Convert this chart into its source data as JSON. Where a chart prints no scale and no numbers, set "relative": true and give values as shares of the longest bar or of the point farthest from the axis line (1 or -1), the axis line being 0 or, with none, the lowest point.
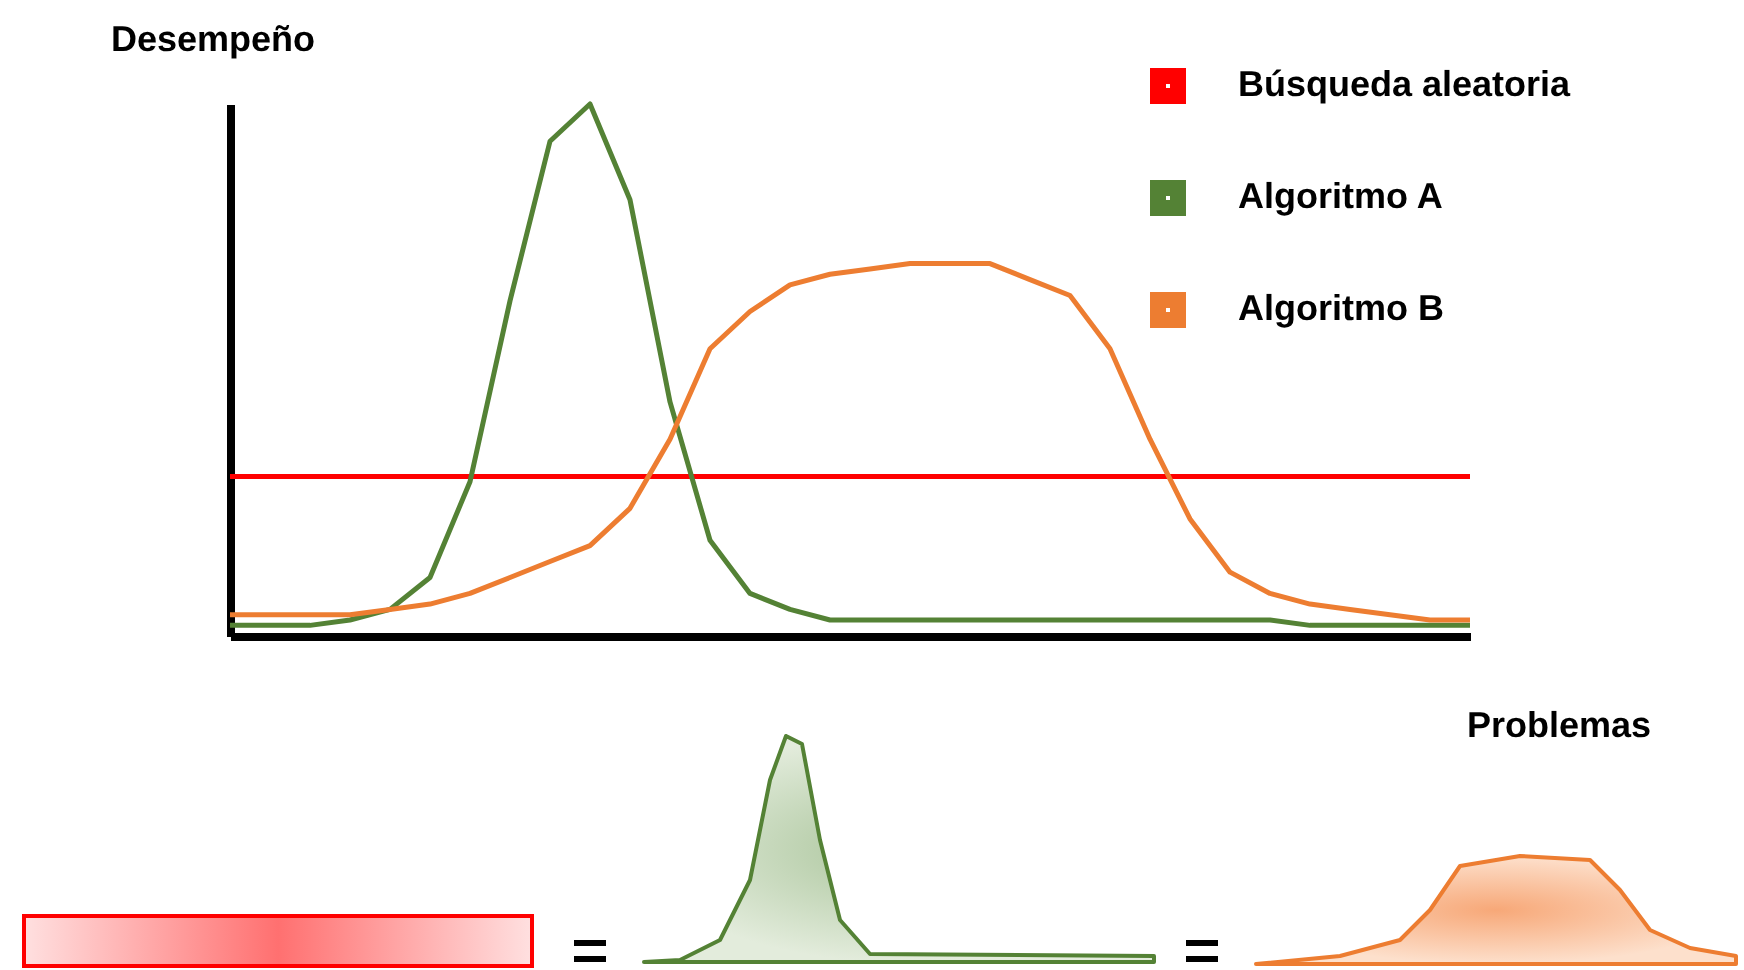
{
  "chart_data": {
    "type": "line",
    "ylabel": "Desempeño",
    "xlabel": "Problemas",
    "relative": true,
    "legend": "top right",
    "marker": "none",
    "line_style": "solid",
    "grid": false,
    "categories": [
      null,
      null,
      null,
      null,
      null,
      null,
      null,
      null,
      null,
      null,
      null,
      null,
      null,
      null,
      null,
      null,
      null,
      null,
      null,
      null,
      null,
      null,
      null,
      null,
      null,
      null,
      null,
      null,
      null,
      null,
      null,
      null
    ],
    "series": [
      {
        "name": "Búsqueda aleatoria",
        "color": "#ff0000",
        "values": [
          0.3,
          0.3,
          0.3,
          0.3,
          0.3,
          0.3,
          0.3,
          0.3,
          0.3,
          0.3,
          0.3,
          0.3,
          0.3,
          0.3,
          0.3,
          0.3,
          0.3,
          0.3,
          0.3,
          0.3,
          0.3,
          0.3,
          0.3,
          0.3,
          0.3,
          0.3,
          0.3,
          0.3,
          0.3,
          0.3,
          0.3,
          0.3
        ]
      },
      {
        "name": "Algoritmo A",
        "color": "#548235",
        "values": [
          0.02,
          0.02,
          0.02,
          0.03,
          0.05,
          0.11,
          0.29,
          0.63,
          0.93,
          1,
          0.82,
          0.44,
          0.18,
          0.08,
          0.05,
          0.03,
          0.03,
          0.03,
          0.03,
          0.03,
          0.03,
          0.03,
          0.03,
          0.03,
          0.03,
          0.03,
          0.03,
          0.02,
          0.02,
          0.02,
          0.02,
          0.02
        ]
      },
      {
        "name": "Algoritmo B",
        "color": "#ed7d31",
        "values": [
          0.04,
          0.04,
          0.04,
          0.04,
          0.05,
          0.06,
          0.08,
          0.11,
          0.14,
          0.17,
          0.24,
          0.37,
          0.54,
          0.61,
          0.66,
          0.68,
          0.69,
          0.7,
          0.7,
          0.7,
          0.67,
          0.64,
          0.54,
          0.37,
          0.22,
          0.12,
          0.08,
          0.06,
          0.05,
          0.04,
          0.03,
          0.03
        ]
      }
    ]
  }
}
